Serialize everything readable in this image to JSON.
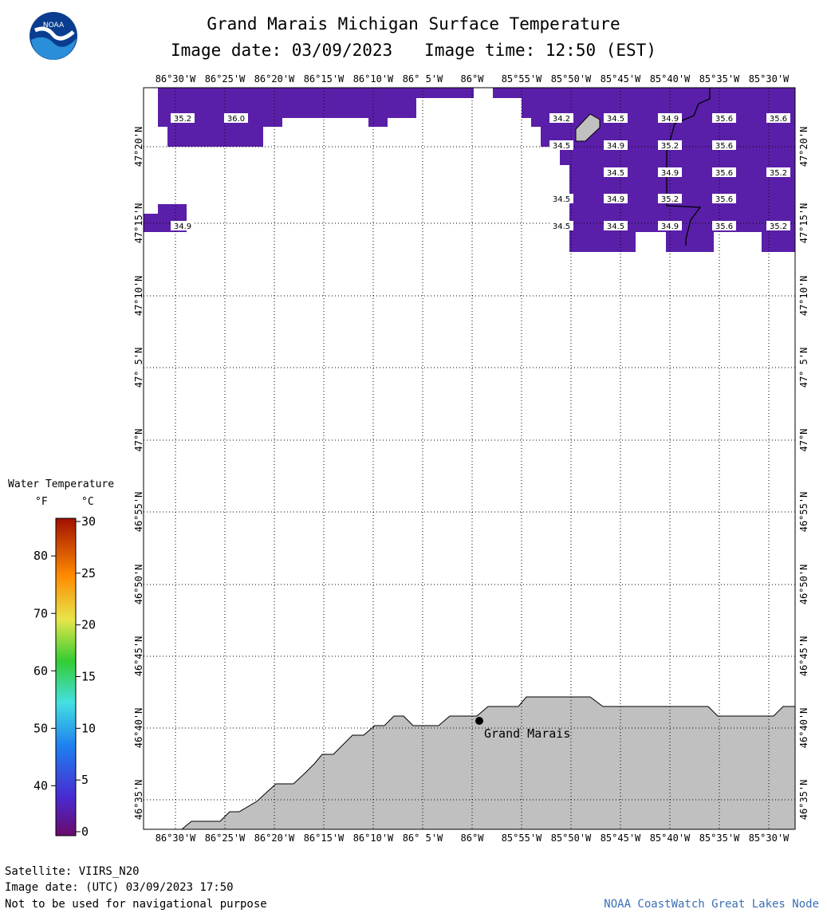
{
  "header": {
    "title": "Grand Marais Michigan Surface Temperature",
    "image_date": "Image date: 03/09/2023",
    "image_time": "Image time: 12:50 (EST)",
    "logo_text": "NOAA"
  },
  "map": {
    "lon_labels": [
      "86°30'W",
      "86°25'W",
      "86°20'W",
      "86°15'W",
      "86°10'W",
      "86° 5'W",
      "86°W",
      "85°55'W",
      "85°50'W",
      "85°45'W",
      "85°40'W",
      "85°35'W",
      "85°30'W"
    ],
    "lat_labels": [
      "47°20'N",
      "47°15'N",
      "47°10'N",
      "47° 5'N",
      "47°N",
      "46°55'N",
      "46°50'N",
      "46°45'N",
      "46°40'N",
      "46°35'N"
    ],
    "place_label": "Grand Marais",
    "temp_labels": [
      {
        "col": 0,
        "row": 0,
        "value": "35.2"
      },
      {
        "col": 1,
        "row": 0,
        "value": "36.0"
      },
      {
        "col": 8,
        "row": 0,
        "value": "34.2"
      },
      {
        "col": 9,
        "row": 0,
        "value": "34.5"
      },
      {
        "col": 10,
        "row": 0,
        "value": "34.9"
      },
      {
        "col": 11,
        "row": 0,
        "value": "35.6"
      },
      {
        "col": 12,
        "row": 0,
        "value": "35.6"
      },
      {
        "col": 8,
        "row": 1,
        "value": "34.5"
      },
      {
        "col": 9,
        "row": 1,
        "value": "34.9"
      },
      {
        "col": 10,
        "row": 1,
        "value": "35.2"
      },
      {
        "col": 11,
        "row": 1,
        "value": "35.6"
      },
      {
        "col": 9,
        "row": 2,
        "value": "34.5"
      },
      {
        "col": 10,
        "row": 2,
        "value": "34.9"
      },
      {
        "col": 11,
        "row": 2,
        "value": "35.6"
      },
      {
        "col": 12,
        "row": 2,
        "value": "35.2"
      },
      {
        "col": 8,
        "row": 3,
        "value": "34.5"
      },
      {
        "col": 9,
        "row": 3,
        "value": "34.9"
      },
      {
        "col": 10,
        "row": 3,
        "value": "35.2"
      },
      {
        "col": 11,
        "row": 3,
        "value": "35.6"
      },
      {
        "col": 0,
        "row": 4,
        "value": "34.9"
      },
      {
        "col": 8,
        "row": 4,
        "value": "34.5"
      },
      {
        "col": 9,
        "row": 4,
        "value": "34.5"
      },
      {
        "col": 10,
        "row": 4,
        "value": "34.9"
      },
      {
        "col": 11,
        "row": 4,
        "value": "35.6"
      },
      {
        "col": 12,
        "row": 4,
        "value": "35.2"
      }
    ],
    "water_color": "#5a1fa8",
    "land_color": "#c0c0c0"
  },
  "legend": {
    "title": "Water Temperature",
    "unit_f": "°F",
    "unit_c": "°C",
    "f_ticks": [
      "80",
      "70",
      "60",
      "50",
      "40"
    ],
    "c_ticks": [
      "30",
      "25",
      "20",
      "15",
      "10",
      "5",
      "0"
    ]
  },
  "footer": {
    "satellite": "Satellite: VIIRS_N20",
    "utc_date": "Image date: (UTC) 03/09/2023  17:50",
    "disclaimer": "Not to be used for navigational purpose",
    "credit": "NOAA CoastWatch Great Lakes Node"
  }
}
